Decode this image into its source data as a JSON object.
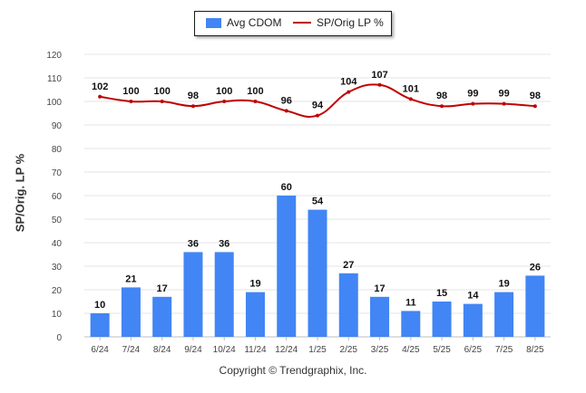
{
  "legend": {
    "bar_label": "Avg CDOM",
    "line_label": "SP/Orig LP %"
  },
  "copyright": "Copyright © Trendgraphix, Inc.",
  "colors": {
    "bar": "#4285f4",
    "line": "#c00000",
    "grid": "#e6e6e6"
  },
  "chart_data": {
    "type": "bar",
    "title": "",
    "ylabel": "SP/Orig. LP %",
    "xlabel": "",
    "ylim": [
      0,
      120
    ],
    "yticks": [
      0,
      10,
      20,
      30,
      40,
      50,
      60,
      70,
      80,
      90,
      100,
      110,
      120
    ],
    "grid": true,
    "legend_position": "top-center",
    "categories": [
      "6/24",
      "7/24",
      "8/24",
      "9/24",
      "10/24",
      "11/24",
      "12/24",
      "1/25",
      "2/25",
      "3/25",
      "4/25",
      "5/25",
      "6/25",
      "7/25",
      "8/25"
    ],
    "series": [
      {
        "name": "Avg CDOM",
        "type": "bar",
        "values": [
          10,
          21,
          17,
          36,
          36,
          19,
          60,
          54,
          27,
          17,
          11,
          15,
          14,
          19,
          26
        ]
      },
      {
        "name": "SP/Orig LP %",
        "type": "line",
        "values": [
          102,
          100,
          100,
          98,
          100,
          100,
          96,
          94,
          104,
          107,
          101,
          98,
          99,
          99,
          98
        ]
      }
    ]
  }
}
